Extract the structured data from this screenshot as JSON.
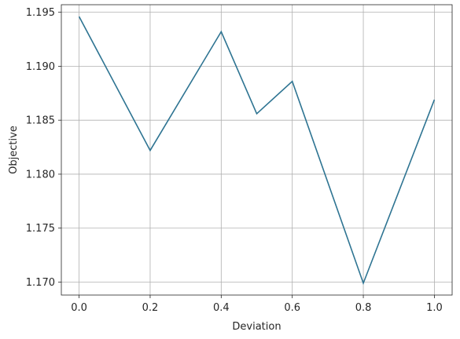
{
  "chart_data": {
    "type": "line",
    "title": "",
    "xlabel": "Deviation",
    "ylabel": "Objective",
    "x": [
      0.0,
      0.2,
      0.4,
      0.5,
      0.6,
      0.8,
      1.0
    ],
    "series": [
      {
        "values": [
          1.1946,
          1.1822,
          1.1932,
          1.1856,
          1.1886,
          1.1699,
          1.1869
        ],
        "color": "#2e7492"
      }
    ],
    "xlim": [
      -0.05,
      1.05
    ],
    "ylim": [
      1.1688,
      1.1957
    ],
    "xticks": [
      0.0,
      0.2,
      0.4,
      0.6,
      0.8,
      1.0
    ],
    "xtick_labels": [
      "0.0",
      "0.2",
      "0.4",
      "0.6",
      "0.8",
      "1.0"
    ],
    "yticks": [
      1.17,
      1.175,
      1.18,
      1.185,
      1.19,
      1.195
    ],
    "ytick_labels": [
      "1.170",
      "1.175",
      "1.180",
      "1.185",
      "1.190",
      "1.195"
    ],
    "grid": true,
    "legend": false
  }
}
